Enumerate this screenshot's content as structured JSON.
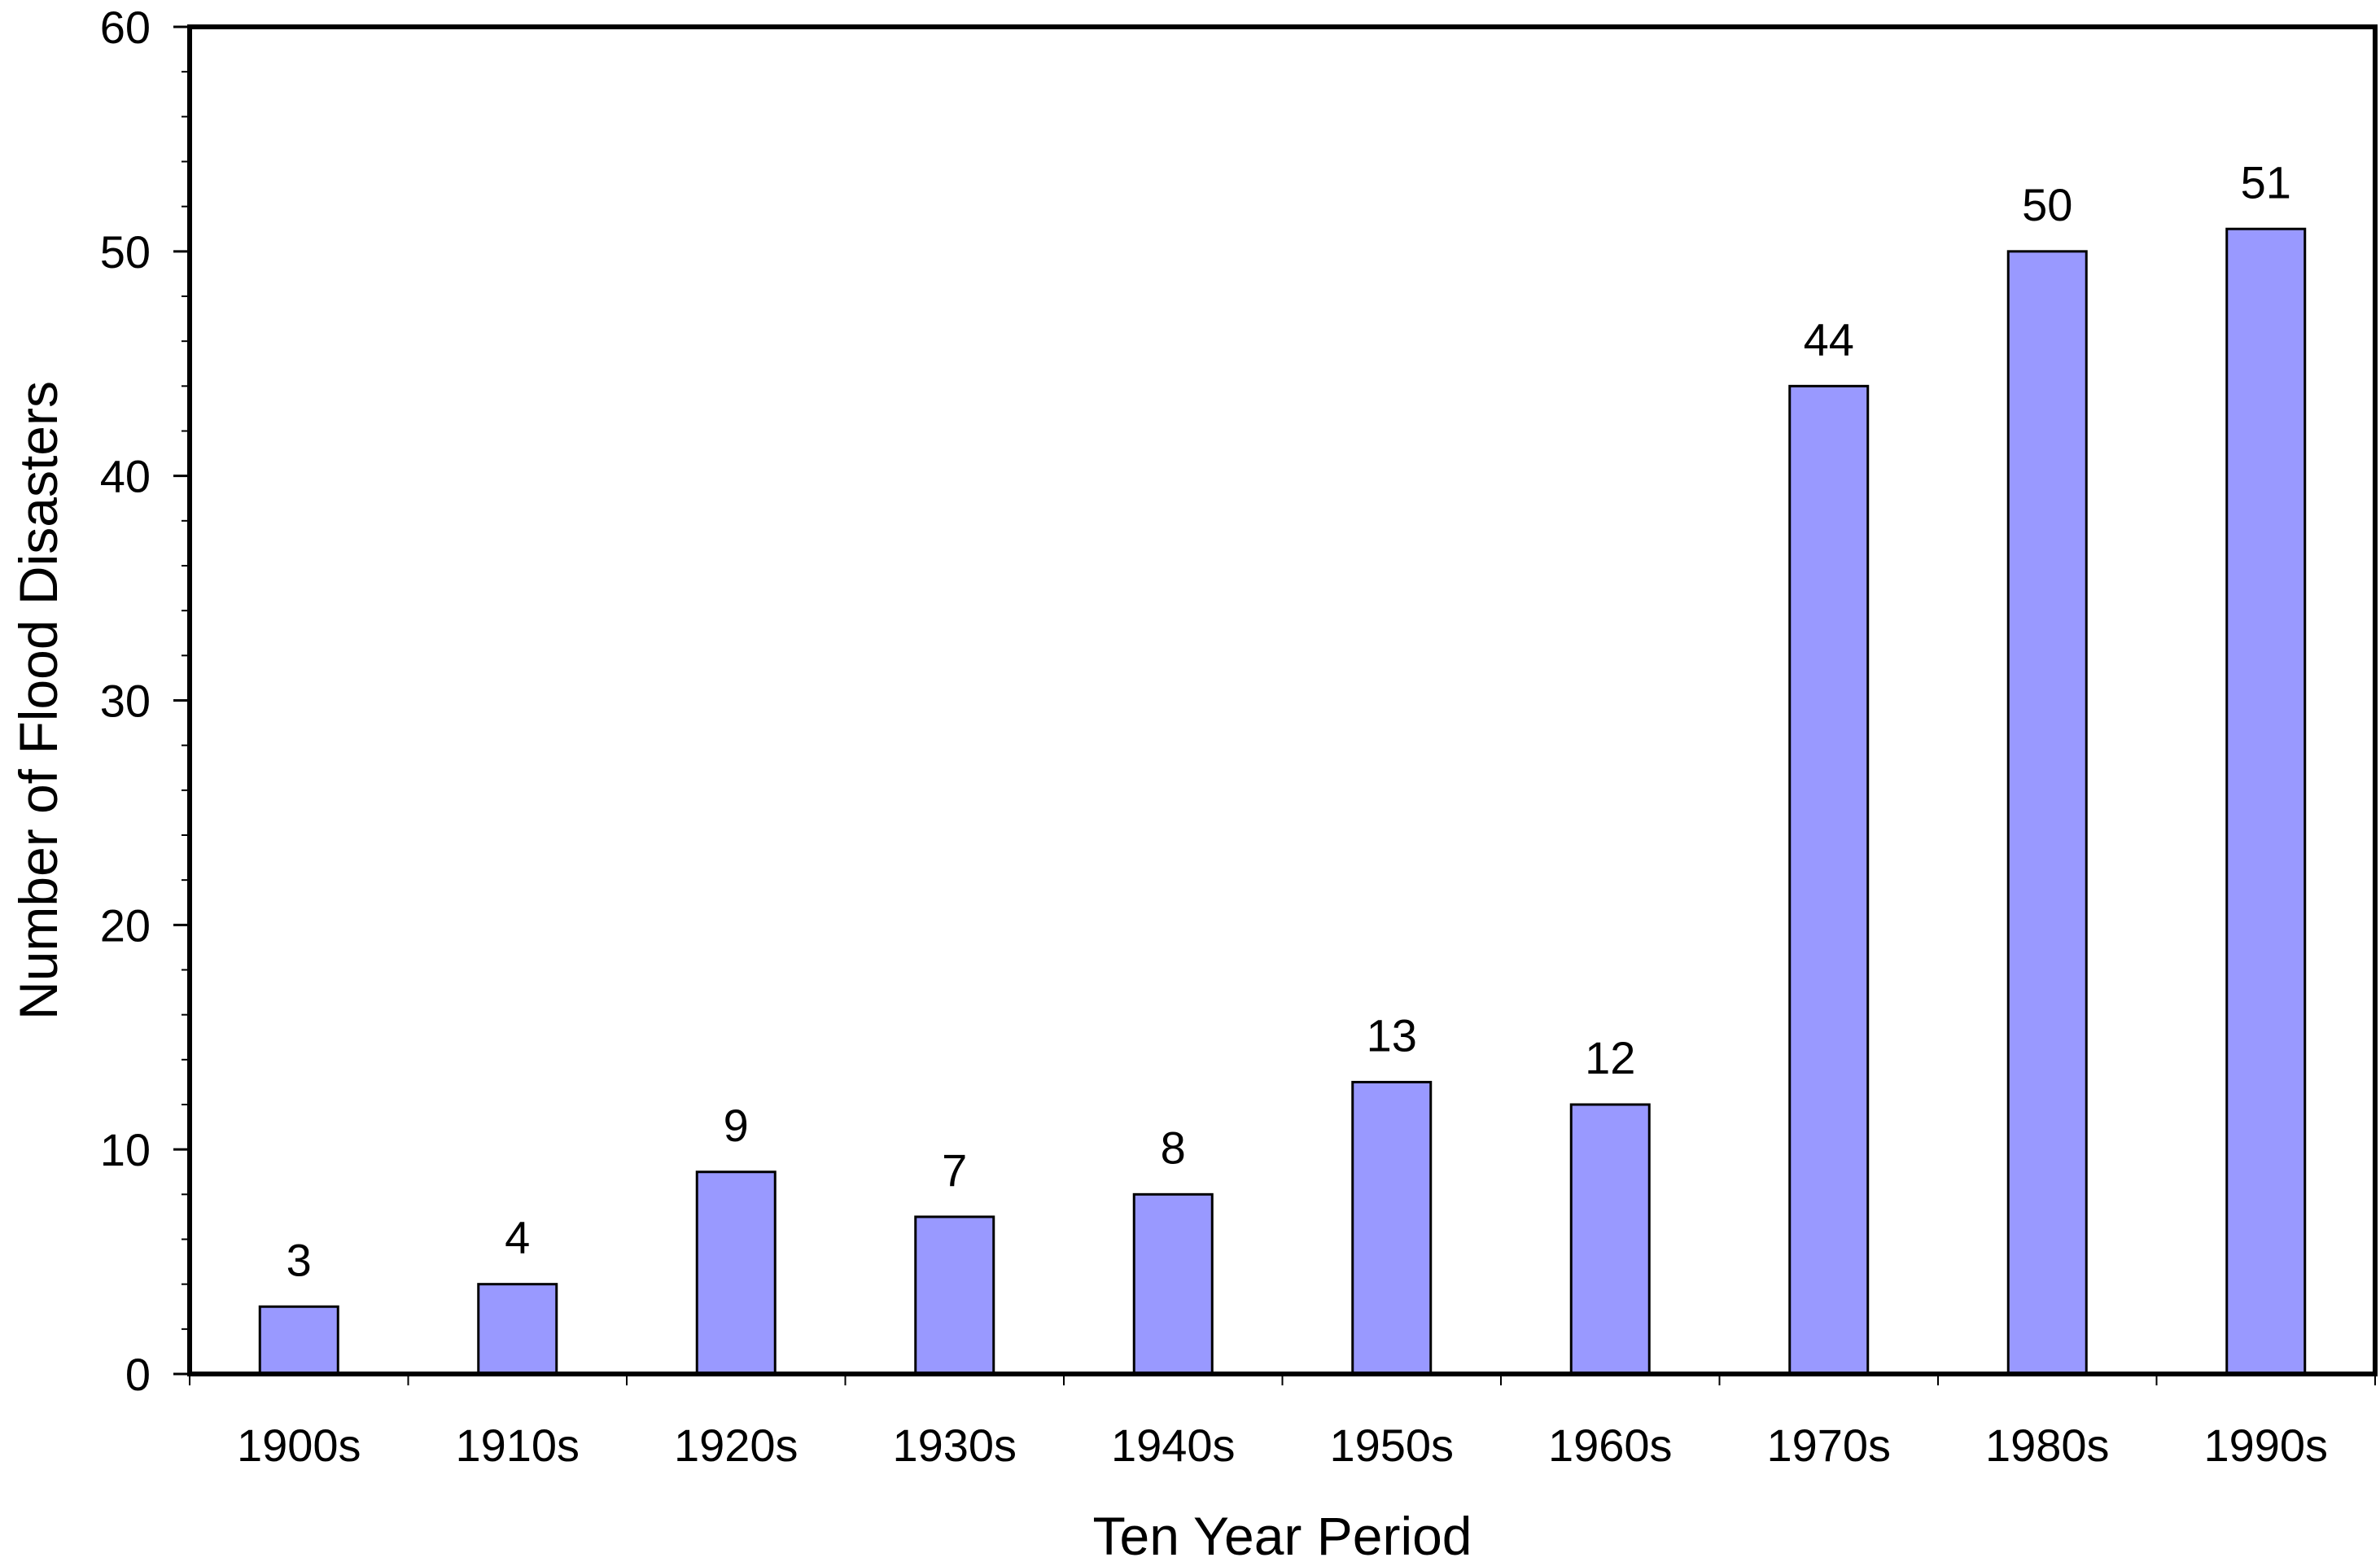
{
  "chart_data": {
    "type": "bar",
    "title": "",
    "xlabel": "Ten Year Period",
    "ylabel": "Number of Flood Disasters",
    "categories": [
      "1900s",
      "1910s",
      "1920s",
      "1930s",
      "1940s",
      "1950s",
      "1960s",
      "1970s",
      "1980s",
      "1990s"
    ],
    "values": [
      3,
      4,
      9,
      7,
      8,
      13,
      12,
      44,
      50,
      51
    ],
    "data_labels": [
      "3",
      "4",
      "9",
      "7",
      "8",
      "13",
      "12",
      "44",
      "50",
      "51"
    ],
    "ylim": [
      0,
      60
    ],
    "y_major_ticks": [
      0,
      10,
      20,
      30,
      40,
      50,
      60
    ],
    "y_tick_labels": [
      "0",
      "10",
      "20",
      "30",
      "40",
      "50",
      "60"
    ],
    "y_minor_tick_step": 2,
    "grid": false,
    "legend": "none",
    "colors": {
      "bar_fill": "#9999ff",
      "bar_stroke": "#000000",
      "axis": "#000000",
      "background": "#ffffff"
    }
  }
}
